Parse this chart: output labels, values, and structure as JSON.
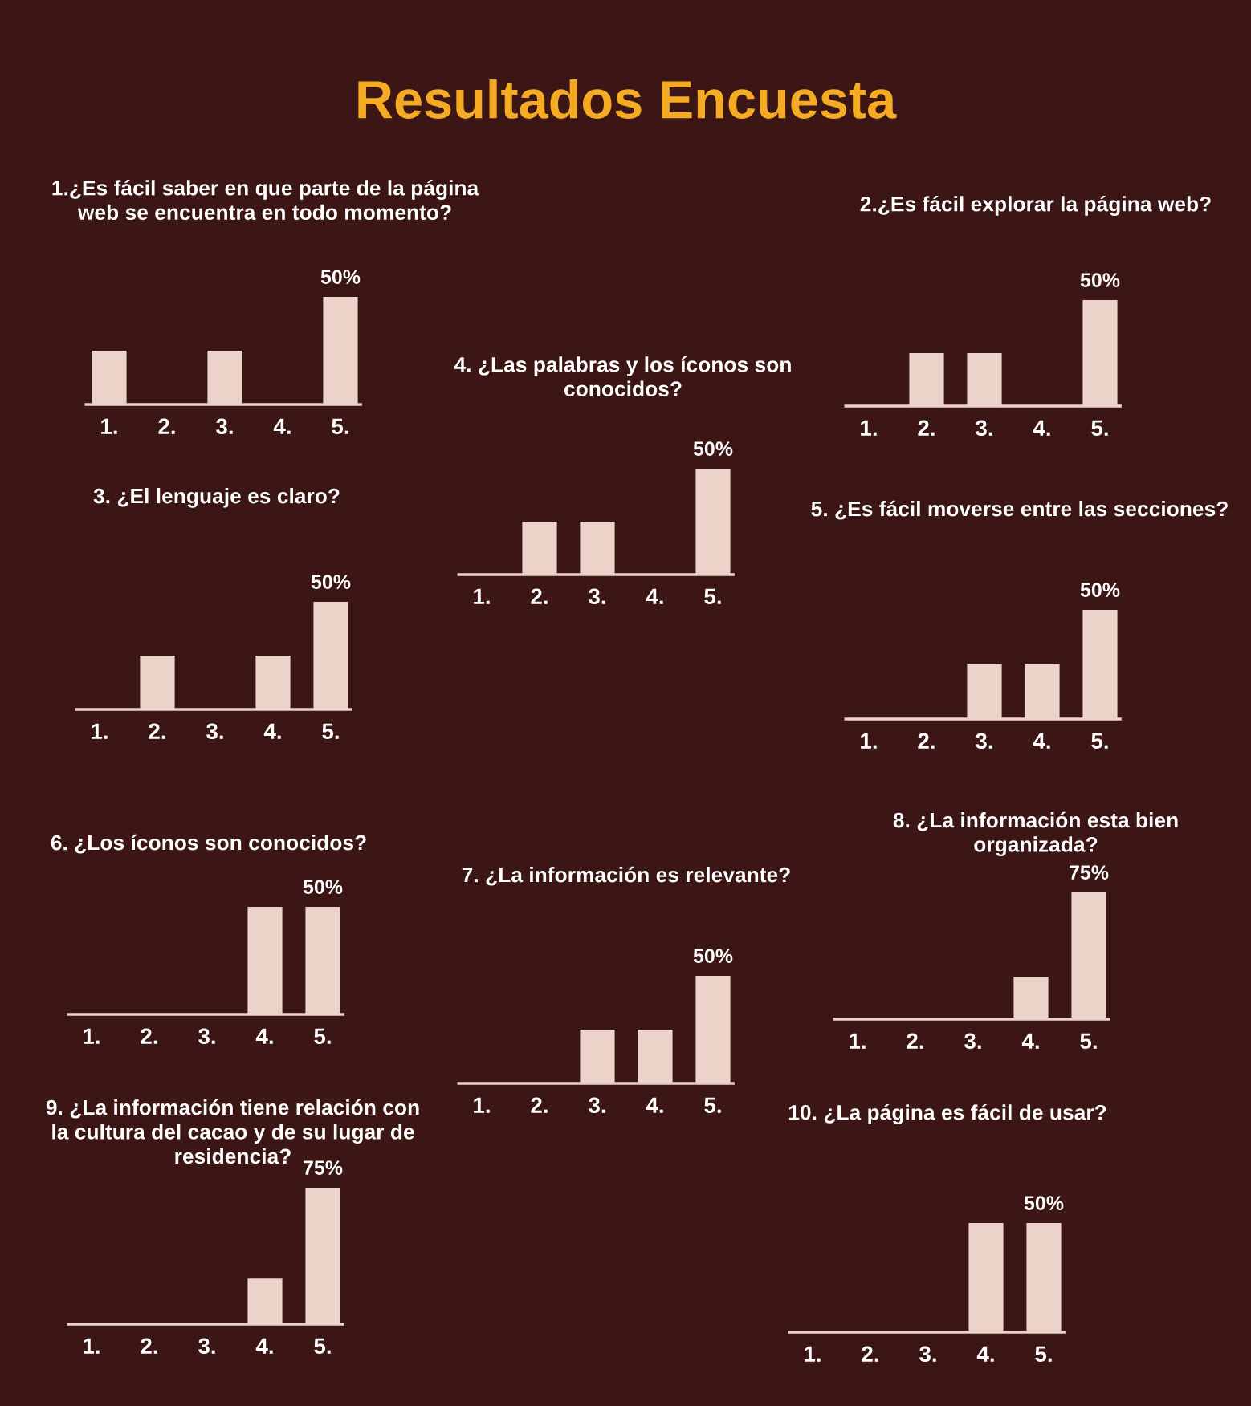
{
  "chart_data": [
    {
      "type": "other",
      "title": "Resultados Encuesta"
    },
    {
      "type": "bar",
      "title": "1.¿Es fácil saber en que parte de la página\nweb se encuentra en todo momento?",
      "categories": [
        "1.",
        "2.",
        "3.",
        "4.",
        "5."
      ],
      "values": [
        25,
        0,
        25,
        0,
        50
      ],
      "color": "#ecd3c9",
      "value_labels": [
        null,
        null,
        null,
        null,
        "50%"
      ]
    },
    {
      "type": "bar",
      "title": "2.¿Es fácil explorar la página web?",
      "categories": [
        "1.",
        "2.",
        "3.",
        "4.",
        "5."
      ],
      "values": [
        0,
        25,
        25,
        0,
        50
      ],
      "color": "#ecd3c9",
      "value_labels": [
        null,
        null,
        null,
        null,
        "50%"
      ]
    },
    {
      "type": "bar",
      "title": "3. ¿El lenguaje es claro?",
      "categories": [
        "1.",
        "2.",
        "3.",
        "4.",
        "5."
      ],
      "values": [
        0,
        25,
        0,
        25,
        50
      ],
      "color": "#ecd3c9",
      "value_labels": [
        null,
        null,
        null,
        null,
        "50%"
      ]
    },
    {
      "type": "bar",
      "title": "4. ¿Las palabras y los íconos son\nconocidos?",
      "categories": [
        "1.",
        "2.",
        "3.",
        "4.",
        "5."
      ],
      "values": [
        0,
        25,
        25,
        0,
        50
      ],
      "color": "#ecd3c9",
      "value_labels": [
        null,
        null,
        null,
        null,
        "50%"
      ]
    },
    {
      "type": "bar",
      "title": "5. ¿Es fácil moverse entre las secciones?",
      "categories": [
        "1.",
        "2.",
        "3.",
        "4.",
        "5."
      ],
      "values": [
        0,
        0,
        25,
        25,
        50
      ],
      "color": "#ecd3c9",
      "value_labels": [
        null,
        null,
        null,
        null,
        "50%"
      ]
    },
    {
      "type": "bar",
      "title": "6. ¿Los íconos son conocidos?",
      "categories": [
        "1.",
        "2.",
        "3.",
        "4.",
        "5."
      ],
      "values": [
        0,
        0,
        0,
        50,
        50
      ],
      "color": "#ecd3c9",
      "value_labels": [
        null,
        null,
        null,
        null,
        "50%"
      ]
    },
    {
      "type": "bar",
      "title": "7. ¿La información es relevante?",
      "categories": [
        "1.",
        "2.",
        "3.",
        "4.",
        "5."
      ],
      "values": [
        0,
        0,
        25,
        25,
        50
      ],
      "color": "#ecd3c9",
      "value_labels": [
        null,
        null,
        null,
        null,
        "50%"
      ]
    },
    {
      "type": "bar",
      "title": "8. ¿La información esta bien\norganizada?",
      "categories": [
        "1.",
        "2.",
        "3.",
        "4.",
        "5."
      ],
      "values": [
        0,
        0,
        0,
        25,
        75
      ],
      "color": "#ecd3c9",
      "value_labels": [
        null,
        null,
        null,
        null,
        "75%"
      ]
    },
    {
      "type": "bar",
      "title": "9. ¿La información tiene relación con\nla cultura del cacao y de su lugar de\nresidencia?",
      "categories": [
        "1.",
        "2.",
        "3.",
        "4.",
        "5."
      ],
      "values": [
        0,
        0,
        0,
        25,
        75
      ],
      "color": "#ecd3c9",
      "value_labels": [
        null,
        null,
        null,
        null,
        "75%"
      ]
    },
    {
      "type": "bar",
      "title": "10. ¿La página es fácil de usar?",
      "categories": [
        "1.",
        "2.",
        "3.",
        "4.",
        "5."
      ],
      "values": [
        0,
        0,
        0,
        50,
        50
      ],
      "color": "#ecd3c9",
      "value_labels": [
        null,
        null,
        null,
        null,
        "50%"
      ]
    }
  ]
}
